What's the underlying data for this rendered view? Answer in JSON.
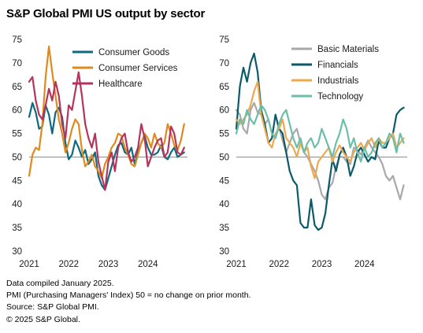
{
  "title": "S&P Global PMI US output by sector",
  "notes": [
    "Data compiled January 2025.",
    "PMI (Purchasing Managers' Index) 50 =  no change on prior month.",
    "Source: S&P Global PMI.",
    "© 2025 S&P Global."
  ],
  "chart_data": [
    {
      "type": "line",
      "title": "",
      "xlabel": "",
      "ylabel": "",
      "ylim": [
        30,
        75
      ],
      "yticks": [
        30,
        35,
        40,
        45,
        50,
        55,
        60,
        65,
        70,
        75
      ],
      "xlim": [
        2021.0,
        2025.0
      ],
      "xtick_labels": [
        "2021",
        "2022",
        "2023",
        "2024"
      ],
      "reference_line": 50,
      "legend": "top-right",
      "grid": false,
      "x_start": 2021.0,
      "x_step": 0.0833333,
      "series": [
        {
          "name": "Consumer Goods",
          "color": "#0e6a7e",
          "values": [
            58.5,
            61.5,
            59.5,
            56,
            56.5,
            61,
            59,
            55,
            59.5,
            60.5,
            58.5,
            53,
            49.5,
            50.5,
            53.5,
            52,
            50,
            51.5,
            48.5,
            49.5,
            51,
            46,
            44,
            43,
            45.5,
            48,
            50.5,
            52.5,
            53,
            51,
            50.5,
            52,
            48.5,
            51,
            53,
            54.5,
            52,
            50.5,
            50.5,
            51,
            52.5,
            50,
            49.5,
            51,
            52,
            50,
            50.5,
            51
          ]
        },
        {
          "name": "Consumer Services",
          "color": "#e08a1e",
          "values": [
            46,
            50.5,
            52,
            51.5,
            57,
            67,
            73.5,
            68,
            63,
            58,
            55,
            51,
            53,
            56,
            58,
            57,
            51.5,
            48,
            49,
            50.5,
            48,
            47,
            45.5,
            48.5,
            50,
            52,
            53,
            55,
            54.5,
            52,
            50.5,
            48.5,
            48,
            50.5,
            53,
            55,
            54,
            52,
            55,
            53,
            52,
            53,
            57,
            55,
            52.5,
            51.5,
            53.5,
            57
          ]
        },
        {
          "name": "Healthcare",
          "color": "#b5345c",
          "values": [
            66,
            67,
            62,
            59,
            58,
            61,
            64.5,
            62,
            66,
            63,
            57,
            54,
            61,
            60,
            64,
            68,
            63,
            57,
            54,
            52,
            55,
            49,
            46,
            43,
            49,
            51,
            47,
            52,
            54,
            55,
            51,
            49,
            50,
            52,
            57,
            54,
            48,
            50,
            52,
            53.5,
            54,
            50,
            51,
            56.5,
            55,
            51,
            50.5,
            52
          ]
        }
      ]
    },
    {
      "type": "line",
      "title": "",
      "xlabel": "",
      "ylabel": "",
      "ylim": [
        30,
        75
      ],
      "yticks": [
        30,
        35,
        40,
        45,
        50,
        55,
        60,
        65,
        70,
        75
      ],
      "xlim": [
        2021.0,
        2025.0
      ],
      "xtick_labels": [
        "2021",
        "2022",
        "2023",
        "2024"
      ],
      "reference_line": 50,
      "legend": "top-right",
      "grid": false,
      "x_start": 2021.0,
      "x_step": 0.0833333,
      "series": [
        {
          "name": "Basic Materials",
          "color": "#a8a8a8",
          "values": [
            60,
            59,
            56,
            55,
            60,
            61.5,
            59.5,
            59,
            57,
            58,
            55,
            54,
            56.5,
            53.5,
            51,
            53,
            55,
            56,
            53,
            51,
            50,
            48.5,
            47,
            45,
            42,
            41,
            43.5,
            44.5,
            48,
            50,
            50,
            49,
            48.5,
            52,
            51.5,
            50.5,
            52,
            53.5,
            52,
            51,
            50,
            48.5,
            46,
            45,
            46,
            43.5,
            41,
            44
          ]
        },
        {
          "name": "Financials",
          "color": "#0b5a69",
          "values": [
            56,
            65,
            69,
            66,
            70,
            72,
            68,
            60,
            57,
            53,
            54,
            59,
            56,
            55,
            51,
            47,
            45,
            44,
            36,
            35,
            35,
            41,
            35.5,
            34.5,
            35,
            38,
            44,
            49.5,
            47,
            50.5,
            52,
            50,
            46,
            48,
            51,
            52,
            50.5,
            49,
            50,
            49.5,
            53.5,
            52,
            52,
            54,
            55,
            59,
            60,
            60.5
          ]
        },
        {
          "name": "Industrials",
          "color": "#eea84e",
          "values": [
            58,
            57,
            58,
            59,
            61,
            64,
            66,
            59,
            56,
            53,
            52,
            55,
            56,
            58,
            54,
            53,
            52,
            50,
            53,
            51,
            52,
            48,
            45.5,
            49,
            50,
            51,
            52,
            49,
            51,
            52.5,
            51,
            50,
            49,
            51,
            52,
            53,
            51.5,
            53,
            54,
            52,
            54,
            53,
            53,
            54,
            55,
            52,
            53,
            54
          ]
        },
        {
          "name": "Technology",
          "color": "#6bbfa8",
          "values": [
            55,
            58,
            57,
            60,
            58,
            57,
            59,
            61,
            60,
            58,
            55,
            54,
            57,
            59,
            60,
            57,
            54,
            52,
            54,
            51,
            53,
            54,
            52,
            53,
            56,
            54,
            52,
            50,
            53,
            55,
            58,
            56,
            52,
            54,
            51,
            49,
            52,
            50,
            51,
            53,
            54,
            52,
            53,
            55,
            54,
            51,
            55,
            53
          ]
        }
      ]
    }
  ]
}
